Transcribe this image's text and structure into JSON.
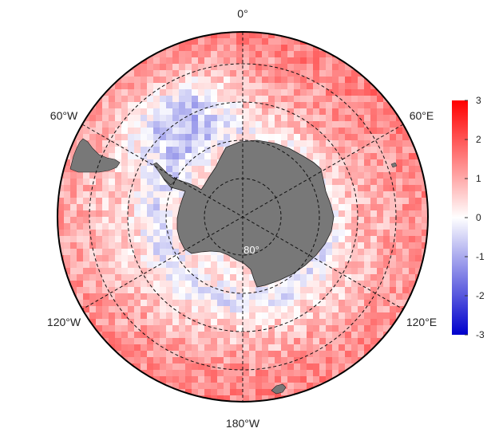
{
  "map": {
    "projection": "south-polar-stereographic",
    "longitude_labels": {
      "top": "0°",
      "upper_left": "60°W",
      "upper_right": "60°E",
      "lower_left": "120°W",
      "lower_right": "120°E",
      "bottom": "180°W"
    },
    "latitude_label": "80°",
    "land_color": "#787878",
    "graticule": "dashed",
    "field_description_colors": {
      "positive": "#ff0000",
      "zero": "#ffffff",
      "negative": "#0000cc"
    }
  },
  "colorbar": {
    "min": -3,
    "max": 3,
    "ticks": [
      "3",
      "2",
      "1",
      "0",
      "-1",
      "-2",
      "-3"
    ],
    "colors": [
      "#0000cc",
      "#ffffff",
      "#ff0000"
    ]
  }
}
